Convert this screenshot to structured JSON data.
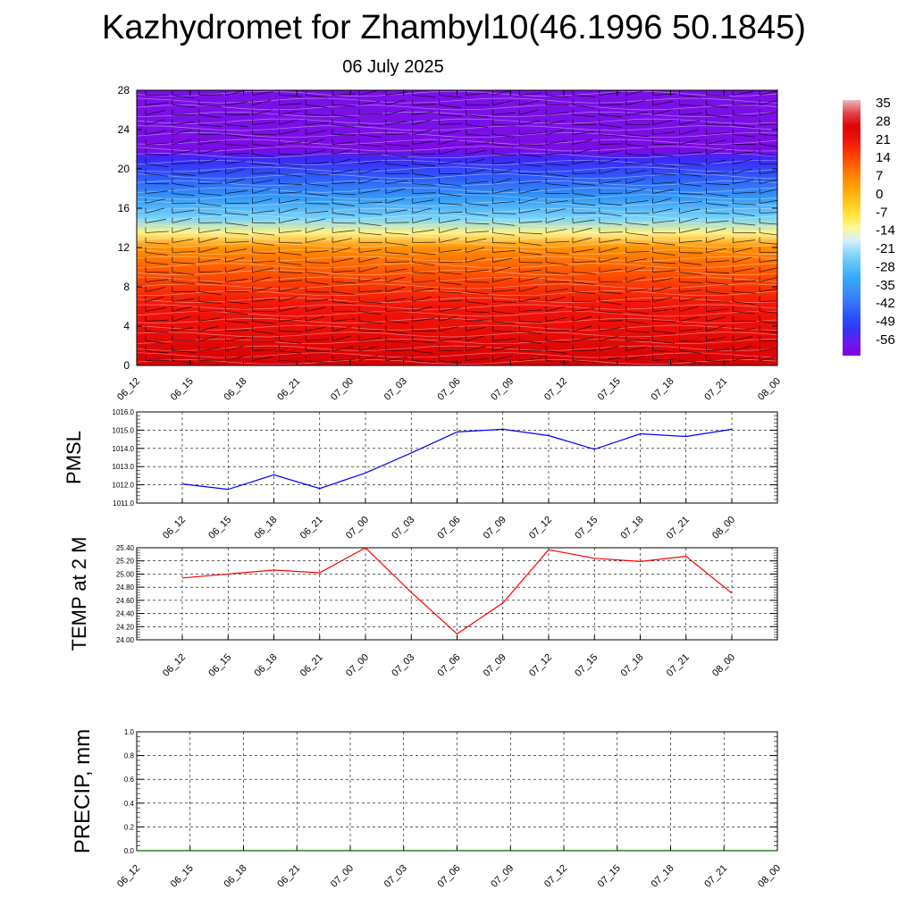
{
  "header": {
    "title": "Kazhydromet for Zhambyl10(46.1996 50.1845)",
    "subtitle": "06 July 2025"
  },
  "chart_data": [
    {
      "type": "heatmap",
      "title": "",
      "xlabel": "",
      "ylabel": "",
      "x_tick_labels": [
        "06_12",
        "06_15",
        "06_18",
        "06_21",
        "07_00",
        "07_03",
        "07_06",
        "07_09",
        "07_12",
        "07_15",
        "07_18",
        "07_21",
        "08_00"
      ],
      "y_tick_labels": [
        "0",
        "4",
        "8",
        "12",
        "16",
        "20",
        "24",
        "28"
      ],
      "ylim": [
        0,
        28
      ],
      "description_levels": "temperature by height level, warm near surface, cold aloft",
      "profile_levels": [
        0,
        2,
        4,
        6,
        8,
        10,
        12,
        13.5,
        15,
        17,
        19,
        21,
        22,
        24,
        26,
        28
      ],
      "profile_values": [
        30,
        27,
        24,
        22,
        18,
        13,
        7,
        -10,
        -22,
        -33,
        -43,
        -52,
        -58,
        -57,
        -57,
        -57
      ],
      "colorbar": {
        "labels": [
          "35",
          "28",
          "21",
          "14",
          "7",
          "0",
          "-7",
          "-14",
          "-21",
          "-28",
          "-35",
          "-42",
          "-49",
          "-56"
        ],
        "range": [
          -60,
          38
        ]
      },
      "wind_barbs": true
    },
    {
      "type": "line",
      "ylabel": "PMSL",
      "x_tick_labels": [
        "06_12",
        "06_15",
        "06_18",
        "06_21",
        "07_00",
        "07_03",
        "07_06",
        "07_09",
        "07_12",
        "07_15",
        "07_18",
        "07_21",
        "08_00"
      ],
      "ylim": [
        1011.0,
        1016.0
      ],
      "y_tick_labels": [
        "1011.0",
        "1012.0",
        "1013.0",
        "1014.0",
        "1015.0",
        "1016.0"
      ],
      "color": "#0000ff",
      "series": [
        {
          "values": [
            1012.05,
            1011.75,
            1012.55,
            1011.8,
            1012.65,
            1013.75,
            1014.9,
            1015.05,
            1014.7,
            1013.95,
            1014.8,
            1014.65,
            1015.05
          ]
        }
      ],
      "grid": true
    },
    {
      "type": "line",
      "ylabel": "TEMP at 2 M",
      "x_tick_labels": [
        "06_12",
        "06_15",
        "06_18",
        "06_21",
        "07_00",
        "07_03",
        "07_06",
        "07_09",
        "07_12",
        "07_15",
        "07_18",
        "07_21",
        "08_00"
      ],
      "ylim": [
        24.0,
        25.4
      ],
      "y_tick_labels": [
        "24.00",
        "24.20",
        "24.40",
        "24.60",
        "24.80",
        "25.00",
        "25.20",
        "25.40"
      ],
      "color": "#ff0000",
      "series": [
        {
          "values": [
            24.94,
            25.0,
            25.06,
            25.02,
            25.4,
            24.72,
            24.09,
            24.56,
            25.37,
            25.24,
            25.19,
            25.27,
            24.71
          ]
        }
      ],
      "grid": true
    },
    {
      "type": "line",
      "ylabel": "PRECIP, mm",
      "x_tick_labels": [
        "06_12",
        "06_15",
        "06_18",
        "06_21",
        "07_00",
        "07_03",
        "07_06",
        "07_09",
        "07_12",
        "07_15",
        "07_18",
        "07_21",
        "08_00"
      ],
      "ylim": [
        0.0,
        1.0
      ],
      "y_tick_labels": [
        "0.0",
        "0.2",
        "0.4",
        "0.6",
        "0.8",
        "1.0"
      ],
      "color": "#006400",
      "series": [
        {
          "values": [
            0,
            0,
            0,
            0,
            0,
            0,
            0,
            0,
            0,
            0,
            0,
            0,
            0
          ]
        }
      ],
      "grid": true
    }
  ]
}
